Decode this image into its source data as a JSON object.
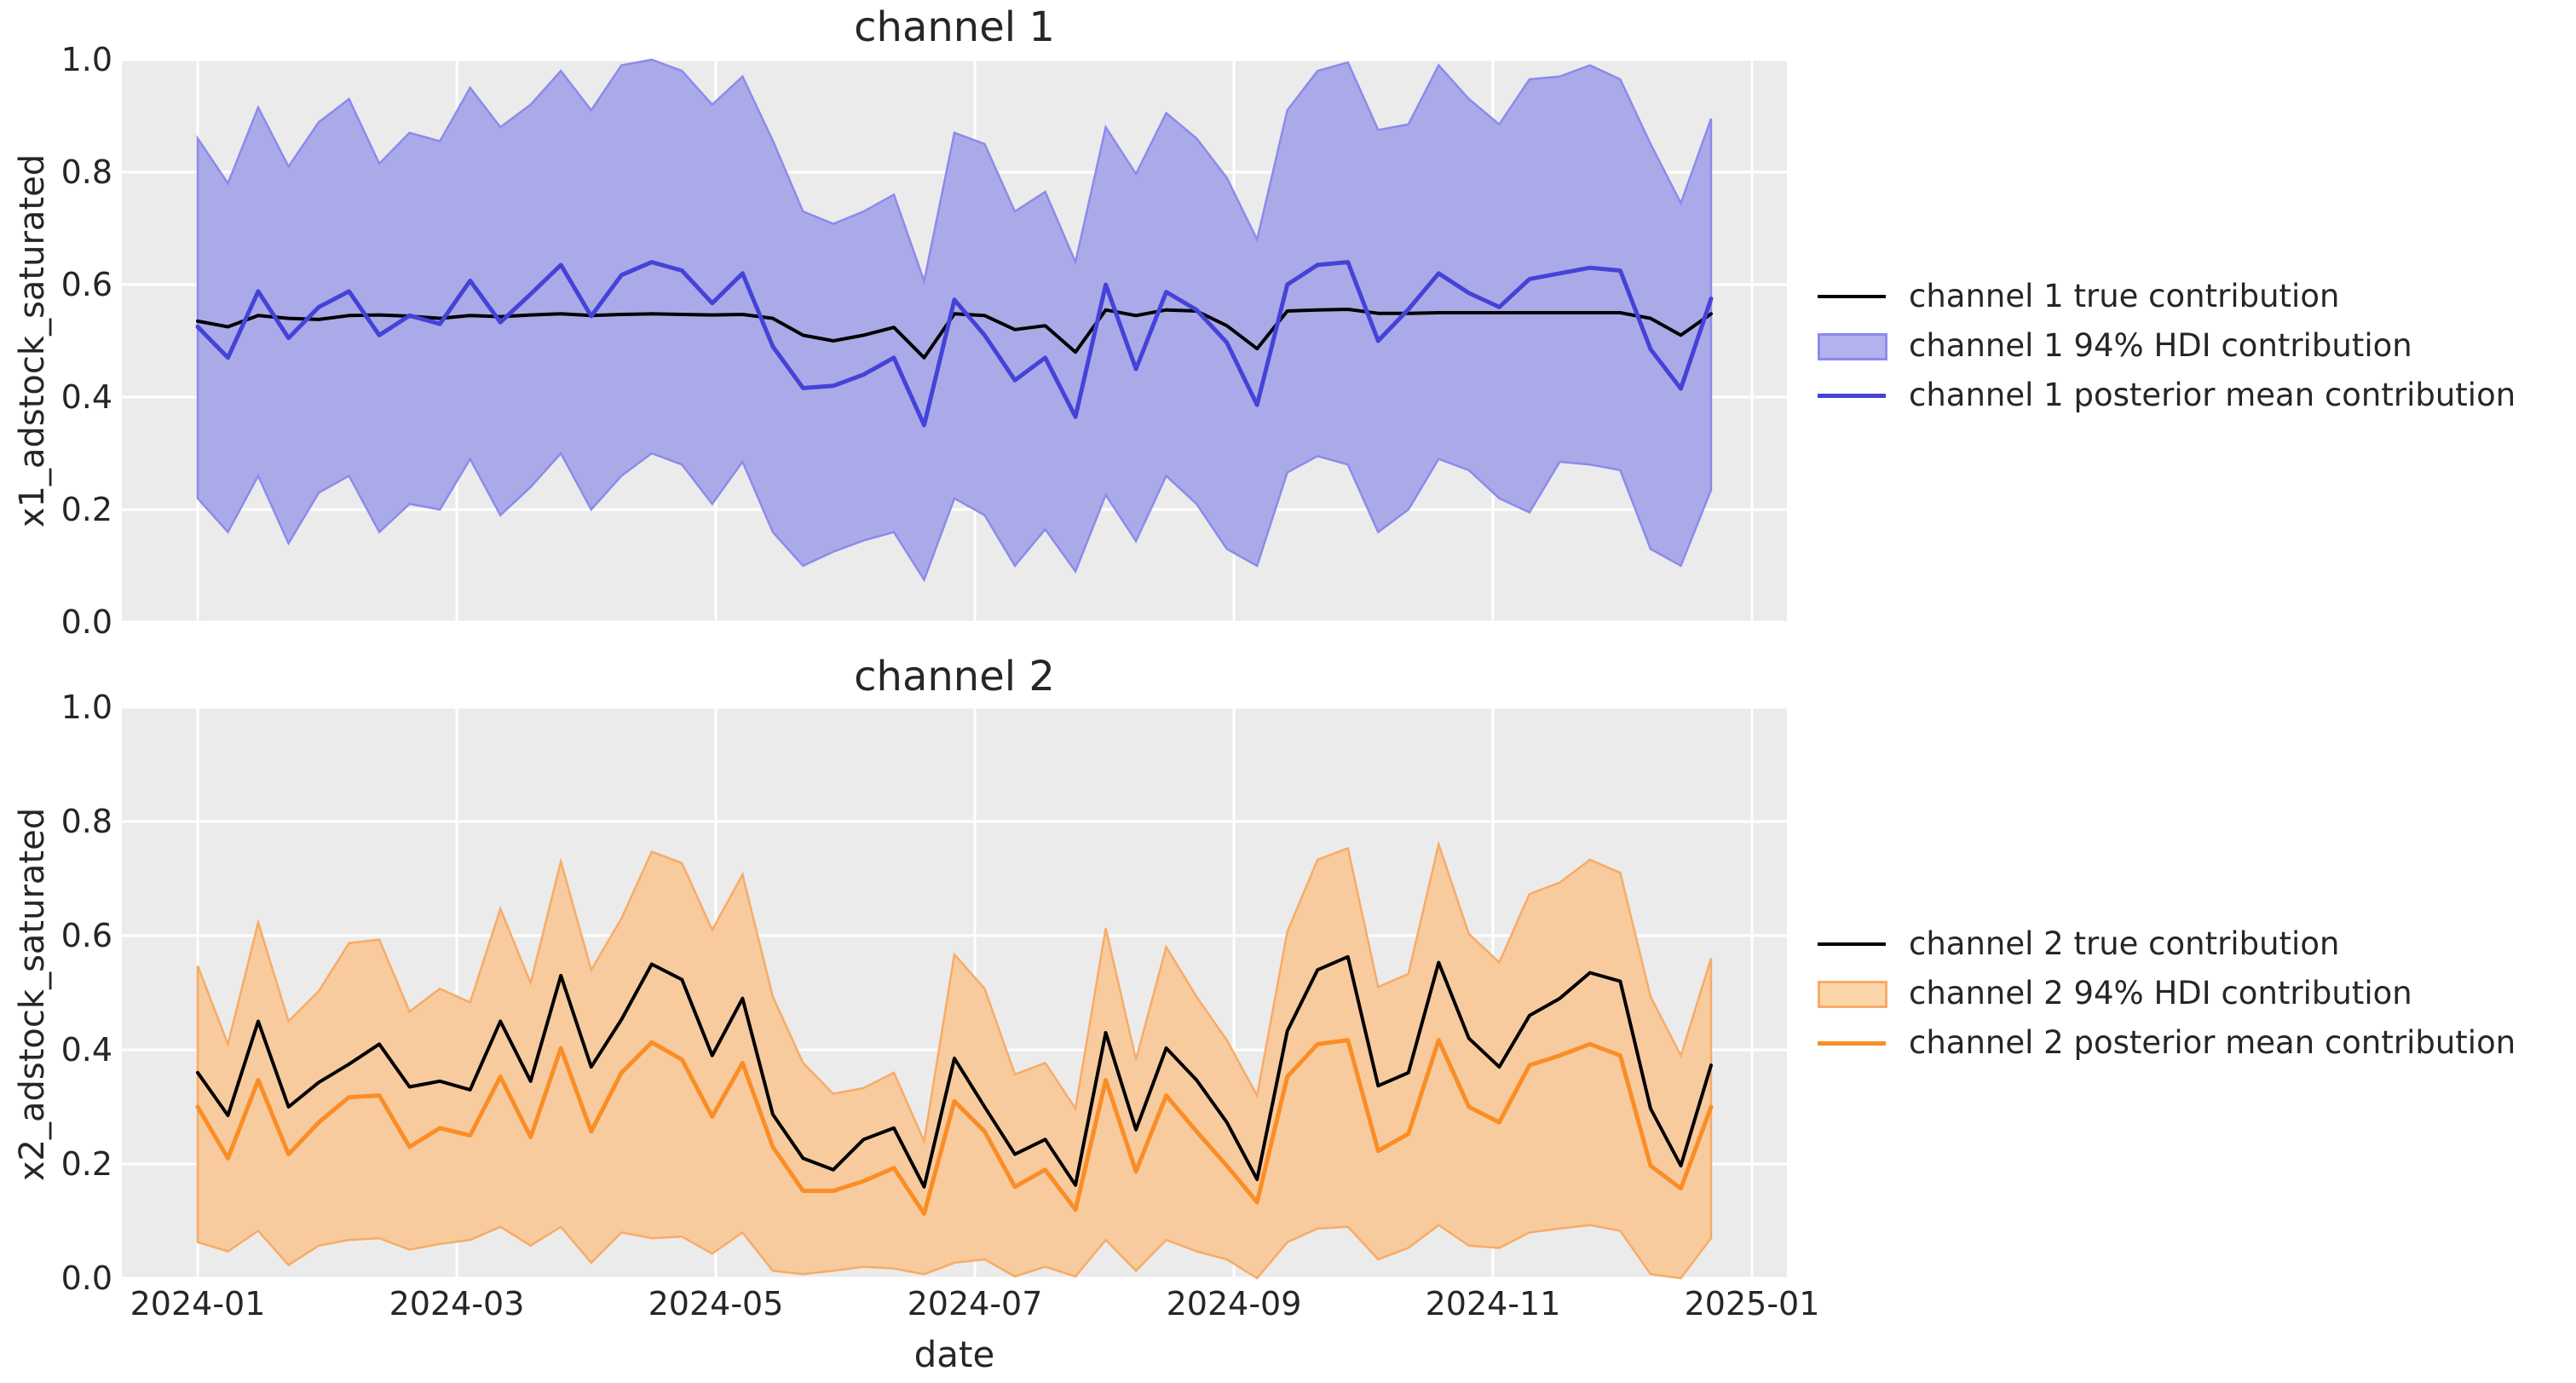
{
  "figure": {
    "background": "#ffffff",
    "axes_background": "#ebebeb",
    "grid_color": "#ffffff",
    "text_color": "#262626"
  },
  "chart_data": [
    {
      "type": "area",
      "title": "channel 1",
      "xlabel": "",
      "ylabel": "x1_adstock_saturated",
      "ylim": [
        0.0,
        1.0
      ],
      "grid": true,
      "legend_position": "center right, outside axes",
      "yticks": [
        "1.0",
        "0.8",
        "0.6",
        "0.4",
        "0.2",
        "0.0"
      ],
      "xtick_labels": [
        "2024-01",
        "2024-03",
        "2024-05",
        "2024-07",
        "2024-09",
        "2024-11",
        "2025-01"
      ],
      "show_xtick_labels": false,
      "x": [
        "2024-01-01",
        "2024-01-08",
        "2024-01-15",
        "2024-01-22",
        "2024-01-29",
        "2024-02-05",
        "2024-02-12",
        "2024-02-19",
        "2024-02-26",
        "2024-03-04",
        "2024-03-11",
        "2024-03-18",
        "2024-03-25",
        "2024-04-01",
        "2024-04-08",
        "2024-04-15",
        "2024-04-22",
        "2024-04-29",
        "2024-05-06",
        "2024-05-13",
        "2024-05-20",
        "2024-05-27",
        "2024-06-03",
        "2024-06-10",
        "2024-06-17",
        "2024-06-24",
        "2024-07-01",
        "2024-07-08",
        "2024-07-15",
        "2024-07-22",
        "2024-07-29",
        "2024-08-05",
        "2024-08-12",
        "2024-08-19",
        "2024-08-26",
        "2024-09-02",
        "2024-09-09",
        "2024-09-16",
        "2024-09-23",
        "2024-09-30",
        "2024-10-07",
        "2024-10-14",
        "2024-10-21",
        "2024-10-28",
        "2024-11-04",
        "2024-11-11",
        "2024-11-18",
        "2024-11-25",
        "2024-12-02",
        "2024-12-09",
        "2024-12-16"
      ],
      "series": [
        {
          "name": "channel 1 true contribution",
          "kind": "line",
          "color": "#000000",
          "values": [
            0.535,
            0.525,
            0.545,
            0.54,
            0.538,
            0.545,
            0.546,
            0.544,
            0.54,
            0.545,
            0.543,
            0.546,
            0.548,
            0.545,
            0.547,
            0.548,
            0.547,
            0.546,
            0.547,
            0.54,
            0.51,
            0.5,
            0.51,
            0.524,
            0.47,
            0.548,
            0.545,
            0.52,
            0.527,
            0.48,
            0.555,
            0.545,
            0.555,
            0.553,
            0.527,
            0.486,
            0.553,
            0.555,
            0.556,
            0.549,
            0.549,
            0.55,
            0.55,
            0.55,
            0.55,
            0.55,
            0.55,
            0.55,
            0.54,
            0.51,
            0.548
          ]
        },
        {
          "name": "channel 1 94% HDI contribution",
          "kind": "band",
          "fill_color": "#abaae8",
          "edge_color": "#8c8aec",
          "legend_fill": "#b2b2ee",
          "lower": [
            0.22,
            0.16,
            0.26,
            0.14,
            0.23,
            0.26,
            0.16,
            0.21,
            0.2,
            0.29,
            0.19,
            0.24,
            0.3,
            0.2,
            0.26,
            0.3,
            0.28,
            0.21,
            0.285,
            0.16,
            0.1,
            0.125,
            0.145,
            0.16,
            0.075,
            0.22,
            0.19,
            0.1,
            0.165,
            0.09,
            0.226,
            0.144,
            0.26,
            0.21,
            0.13,
            0.1,
            0.266,
            0.295,
            0.28,
            0.16,
            0.2,
            0.29,
            0.27,
            0.22,
            0.195,
            0.285,
            0.28,
            0.27,
            0.13,
            0.1,
            0.235
          ],
          "upper": [
            0.86,
            0.78,
            0.915,
            0.81,
            0.889,
            0.93,
            0.815,
            0.87,
            0.855,
            0.95,
            0.88,
            0.92,
            0.98,
            0.91,
            0.99,
            1.0,
            0.98,
            0.92,
            0.97,
            0.856,
            0.73,
            0.708,
            0.73,
            0.76,
            0.606,
            0.87,
            0.85,
            0.73,
            0.765,
            0.64,
            0.88,
            0.797,
            0.905,
            0.86,
            0.79,
            0.68,
            0.91,
            0.98,
            0.995,
            0.875,
            0.885,
            0.99,
            0.93,
            0.885,
            0.965,
            0.97,
            0.99,
            0.965,
            0.85,
            0.745,
            0.895
          ]
        },
        {
          "name": "channel 1 posterior mean contribution",
          "kind": "line",
          "color": "#4443d8",
          "values": [
            0.525,
            0.47,
            0.588,
            0.505,
            0.56,
            0.588,
            0.51,
            0.545,
            0.53,
            0.607,
            0.533,
            0.583,
            0.635,
            0.544,
            0.617,
            0.64,
            0.625,
            0.567,
            0.62,
            0.49,
            0.416,
            0.42,
            0.44,
            0.47,
            0.35,
            0.573,
            0.51,
            0.43,
            0.47,
            0.365,
            0.6,
            0.45,
            0.587,
            0.555,
            0.497,
            0.386,
            0.6,
            0.635,
            0.64,
            0.5,
            0.556,
            0.62,
            0.585,
            0.56,
            0.61,
            0.62,
            0.63,
            0.625,
            0.485,
            0.415,
            0.575
          ]
        }
      ]
    },
    {
      "type": "area",
      "title": "channel 2",
      "xlabel": "date",
      "ylabel": "x2_adstock_saturated",
      "ylim": [
        0.0,
        1.0
      ],
      "grid": true,
      "legend_position": "center right, outside axes",
      "yticks": [
        "1.0",
        "0.8",
        "0.6",
        "0.4",
        "0.2",
        "0.0"
      ],
      "xtick_labels": [
        "2024-01",
        "2024-03",
        "2024-05",
        "2024-07",
        "2024-09",
        "2024-11",
        "2025-01"
      ],
      "show_xtick_labels": true,
      "x": [
        "2024-01-01",
        "2024-01-08",
        "2024-01-15",
        "2024-01-22",
        "2024-01-29",
        "2024-02-05",
        "2024-02-12",
        "2024-02-19",
        "2024-02-26",
        "2024-03-04",
        "2024-03-11",
        "2024-03-18",
        "2024-03-25",
        "2024-04-01",
        "2024-04-08",
        "2024-04-15",
        "2024-04-22",
        "2024-04-29",
        "2024-05-06",
        "2024-05-13",
        "2024-05-20",
        "2024-05-27",
        "2024-06-03",
        "2024-06-10",
        "2024-06-17",
        "2024-06-24",
        "2024-07-01",
        "2024-07-08",
        "2024-07-15",
        "2024-07-22",
        "2024-07-29",
        "2024-08-05",
        "2024-08-12",
        "2024-08-19",
        "2024-08-26",
        "2024-09-02",
        "2024-09-09",
        "2024-09-16",
        "2024-09-23",
        "2024-09-30",
        "2024-10-07",
        "2024-10-14",
        "2024-10-21",
        "2024-10-28",
        "2024-11-04",
        "2024-11-11",
        "2024-11-18",
        "2024-11-25",
        "2024-12-02",
        "2024-12-09",
        "2024-12-16"
      ],
      "series": [
        {
          "name": "channel 2 true contribution",
          "kind": "line",
          "color": "#000000",
          "values": [
            0.36,
            0.285,
            0.45,
            0.3,
            0.343,
            0.375,
            0.41,
            0.335,
            0.345,
            0.33,
            0.45,
            0.345,
            0.53,
            0.37,
            0.453,
            0.55,
            0.523,
            0.39,
            0.49,
            0.287,
            0.21,
            0.19,
            0.243,
            0.263,
            0.16,
            0.385,
            0.3,
            0.217,
            0.243,
            0.163,
            0.43,
            0.26,
            0.403,
            0.347,
            0.273,
            0.173,
            0.433,
            0.54,
            0.563,
            0.337,
            0.36,
            0.553,
            0.42,
            0.37,
            0.46,
            0.49,
            0.535,
            0.52,
            0.297,
            0.197,
            0.373
          ]
        },
        {
          "name": "channel 2 94% HDI contribution",
          "kind": "band",
          "fill_color": "#f7cb9e",
          "edge_color": "#f8ab66",
          "legend_fill": "#fcd6ab",
          "lower": [
            0.063,
            0.047,
            0.083,
            0.023,
            0.057,
            0.067,
            0.07,
            0.05,
            0.06,
            0.067,
            0.09,
            0.057,
            0.09,
            0.027,
            0.08,
            0.07,
            0.073,
            0.043,
            0.08,
            0.013,
            0.007,
            0.013,
            0.02,
            0.017,
            0.007,
            0.027,
            0.033,
            0.003,
            0.02,
            0.003,
            0.067,
            0.013,
            0.067,
            0.047,
            0.033,
            0.0,
            0.063,
            0.087,
            0.09,
            0.033,
            0.053,
            0.093,
            0.057,
            0.053,
            0.08,
            0.087,
            0.093,
            0.083,
            0.007,
            0.0,
            0.07
          ],
          "upper": [
            0.547,
            0.41,
            0.623,
            0.45,
            0.503,
            0.587,
            0.593,
            0.467,
            0.507,
            0.483,
            0.647,
            0.517,
            0.73,
            0.54,
            0.63,
            0.747,
            0.727,
            0.61,
            0.707,
            0.493,
            0.377,
            0.323,
            0.333,
            0.36,
            0.24,
            0.567,
            0.507,
            0.357,
            0.377,
            0.297,
            0.613,
            0.383,
            0.58,
            0.493,
            0.417,
            0.32,
            0.607,
            0.733,
            0.753,
            0.51,
            0.533,
            0.76,
            0.603,
            0.553,
            0.673,
            0.693,
            0.733,
            0.71,
            0.493,
            0.39,
            0.56
          ]
        },
        {
          "name": "channel 2 posterior mean contribution",
          "kind": "line",
          "color": "#fb8d26",
          "values": [
            0.3,
            0.21,
            0.347,
            0.217,
            0.273,
            0.317,
            0.32,
            0.23,
            0.263,
            0.25,
            0.353,
            0.247,
            0.403,
            0.257,
            0.36,
            0.413,
            0.383,
            0.283,
            0.377,
            0.23,
            0.153,
            0.153,
            0.17,
            0.193,
            0.113,
            0.31,
            0.257,
            0.16,
            0.19,
            0.12,
            0.347,
            0.187,
            0.32,
            0.257,
            0.197,
            0.133,
            0.353,
            0.41,
            0.417,
            0.223,
            0.253,
            0.417,
            0.3,
            0.273,
            0.373,
            0.39,
            0.41,
            0.39,
            0.197,
            0.157,
            0.3
          ]
        }
      ]
    }
  ]
}
